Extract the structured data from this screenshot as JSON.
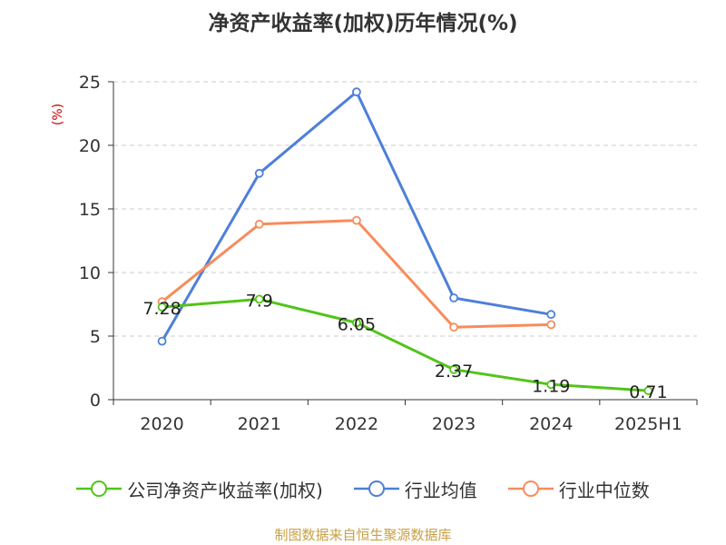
{
  "chart_data": {
    "type": "line",
    "title": "净资产收益率(加权)历年情况(%)",
    "ylabel": "(%)",
    "xlabel": "",
    "categories": [
      "2020",
      "2021",
      "2022",
      "2023",
      "2024",
      "2025H1"
    ],
    "ylim": [
      0,
      25
    ],
    "yticks": [
      0,
      5,
      10,
      15,
      20,
      25
    ],
    "grid": true,
    "legend_position": "bottom",
    "series": [
      {
        "name": "公司净资产收益率(加权)",
        "color": "#52c41a",
        "values": [
          7.28,
          7.9,
          6.05,
          2.37,
          1.19,
          0.71
        ],
        "labels": [
          "7.28",
          "7.9",
          "6.05",
          "2.37",
          "1.19",
          "0.71"
        ]
      },
      {
        "name": "行业均值",
        "color": "#4e7fd9",
        "values": [
          4.6,
          17.8,
          24.2,
          8.0,
          6.7,
          null
        ]
      },
      {
        "name": "行业中位数",
        "color": "#f78c5c",
        "values": [
          7.7,
          13.8,
          14.1,
          5.7,
          5.9,
          null
        ]
      }
    ]
  },
  "source_text": "制图数据来自恒生聚源数据库"
}
